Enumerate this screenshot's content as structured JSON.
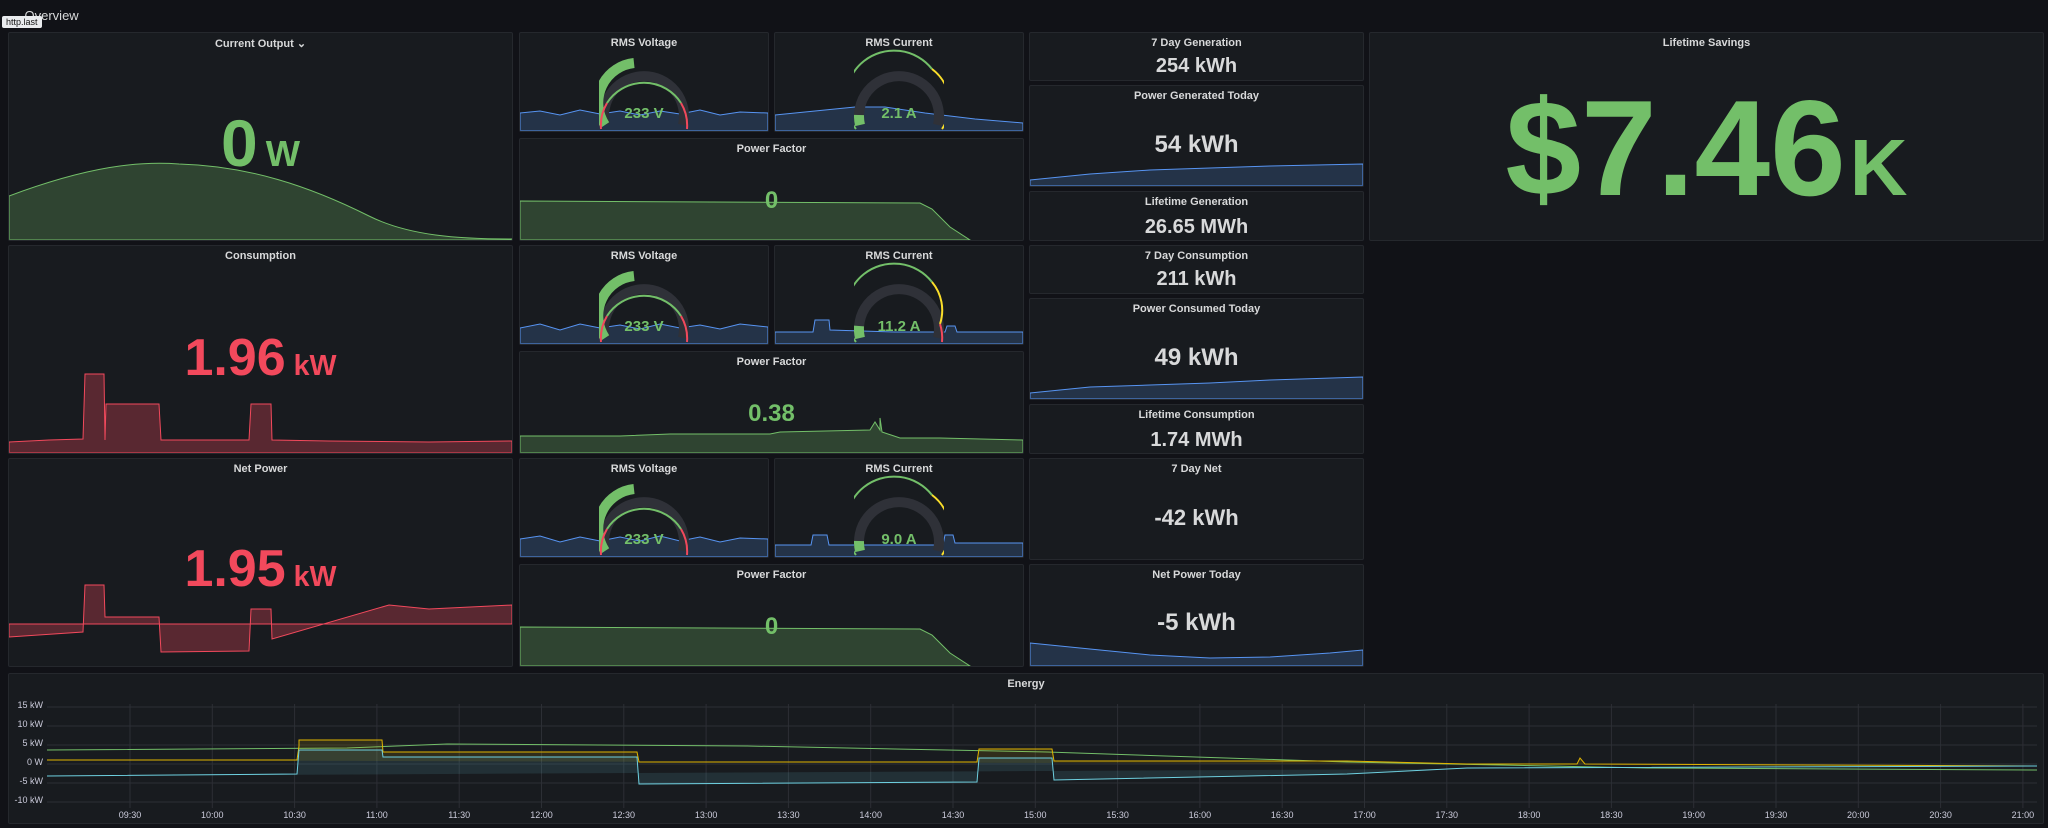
{
  "topbar": {
    "row_title": "Overview",
    "tooltip": "http.last"
  },
  "current_output": {
    "title": "Current Output",
    "value": "0",
    "unit": "W"
  },
  "consumption": {
    "title": "Consumption",
    "value": "1.96",
    "unit": "kW"
  },
  "net_power": {
    "title": "Net Power",
    "value": "1.95",
    "unit": "kW"
  },
  "row1": {
    "voltage": {
      "title": "RMS Voltage",
      "value": "233 V",
      "level": 0.33
    },
    "current": {
      "title": "RMS Current",
      "value": "2.1 A",
      "level": 0.08
    },
    "pf": {
      "title": "Power Factor",
      "value": "0"
    }
  },
  "row2": {
    "voltage": {
      "title": "RMS Voltage",
      "value": "233 V",
      "level": 0.33
    },
    "current": {
      "title": "RMS Current",
      "value": "11.2 A",
      "level": 0.1
    },
    "pf": {
      "title": "Power Factor",
      "value": "0.38"
    }
  },
  "row3": {
    "voltage": {
      "title": "RMS Voltage",
      "value": "233 V",
      "level": 0.33
    },
    "current": {
      "title": "RMS Current",
      "value": "9.0 A",
      "level": 0.08
    },
    "pf": {
      "title": "Power Factor",
      "value": "0"
    }
  },
  "stats": {
    "gen7": {
      "title": "7 Day Generation",
      "value": "254 kWh"
    },
    "gen_today": {
      "title": "Power Generated Today",
      "value": "54 kWh"
    },
    "gen_life": {
      "title": "Lifetime Generation",
      "value": "26.65 MWh"
    },
    "con7": {
      "title": "7 Day Consumption",
      "value": "211 kWh"
    },
    "con_today": {
      "title": "Power Consumed Today",
      "value": "49 kWh"
    },
    "con_life": {
      "title": "Lifetime Consumption",
      "value": "1.74 MWh"
    },
    "net7": {
      "title": "7 Day Net",
      "value": "-42 kWh"
    },
    "net_today": {
      "title": "Net Power Today",
      "value": "-5 kWh"
    }
  },
  "savings": {
    "title": "Lifetime Savings",
    "value": "$7.46",
    "unit": "K"
  },
  "energy": {
    "title": "Energy",
    "y_ticks": [
      "15 kW",
      "10 kW",
      "5 kW",
      "0 W",
      "-5 kW",
      "-10 kW"
    ],
    "x_ticks": [
      "09:30",
      "10:00",
      "10:30",
      "11:00",
      "11:30",
      "12:00",
      "12:30",
      "13:00",
      "13:30",
      "14:00",
      "14:30",
      "15:00",
      "15:30",
      "16:00",
      "16:30",
      "17:00",
      "17:30",
      "18:00",
      "18:30",
      "19:00",
      "19:30",
      "20:00",
      "20:30",
      "21:00"
    ]
  },
  "colors": {
    "green": "#73bf69",
    "red": "#f2495c",
    "yellow": "#fade2a",
    "blue": "#5794f2",
    "teal": "#6ed0e0",
    "orange": "#e0b400"
  }
}
